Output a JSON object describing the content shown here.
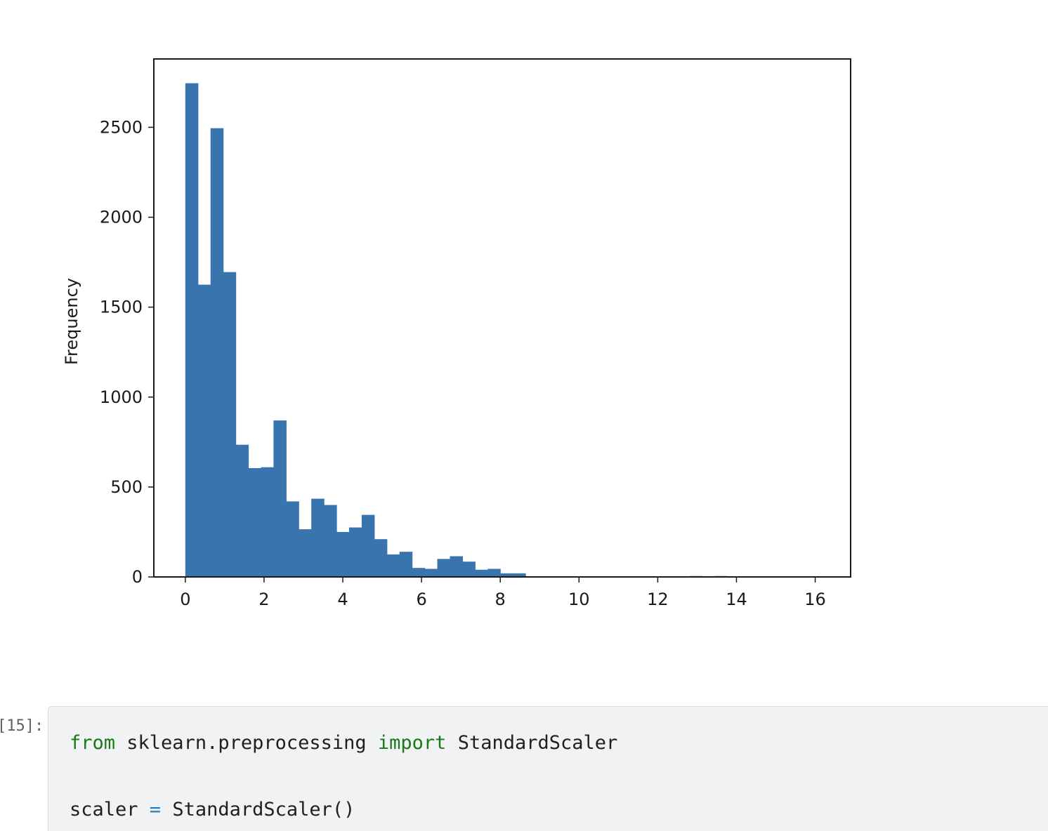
{
  "chart_data": {
    "type": "bar",
    "subtype": "histogram",
    "title": "",
    "xlabel": "",
    "ylabel": "Frequency",
    "xlim": [
      -0.8,
      16.9
    ],
    "ylim": [
      0,
      2880
    ],
    "xticks": [
      0,
      2,
      4,
      6,
      8,
      10,
      12,
      14,
      16
    ],
    "xtick_labels": [
      "0",
      "2",
      "4",
      "6",
      "8",
      "10",
      "12",
      "14",
      "16"
    ],
    "yticks": [
      0,
      500,
      1000,
      1500,
      2000,
      2500
    ],
    "ytick_labels": [
      "0",
      "500",
      "1000",
      "1500",
      "2000",
      "2500"
    ],
    "grid": false,
    "bar_color": "#3a74ae",
    "bin_start": 0.0,
    "bin_width": 0.32,
    "values": [
      2745,
      1625,
      2495,
      1695,
      735,
      605,
      610,
      870,
      420,
      265,
      435,
      400,
      250,
      275,
      345,
      210,
      125,
      140,
      50,
      45,
      100,
      115,
      85,
      40,
      45,
      20,
      20,
      0,
      0,
      0,
      0,
      0,
      0,
      0,
      0,
      0,
      0,
      0,
      0,
      0,
      5,
      0,
      5,
      0,
      0,
      0,
      0,
      0,
      0,
      0
    ]
  },
  "cell": {
    "prompt": "[15]:",
    "code": {
      "line1": {
        "kw_from": "from",
        "module": " sklearn.preprocessing ",
        "kw_import": "import",
        "name": " StandardScaler"
      },
      "line2": {
        "var": "scaler ",
        "op": "=",
        "call": " StandardScaler()"
      }
    }
  }
}
